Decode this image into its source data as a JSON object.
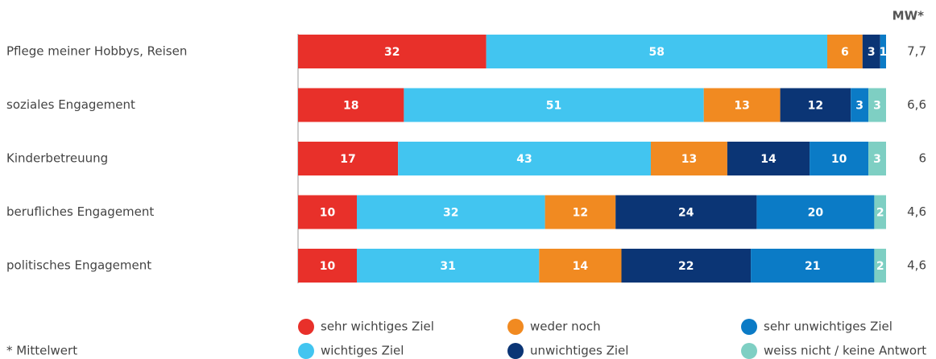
{
  "chart_data": {
    "type": "stacked-bar-horizontal",
    "categories": [
      "Pflege meiner Hobbys, Reisen",
      "soziales Engagement",
      "Kinderbetreuung",
      "berufliches Engagement",
      "politisches Engagement"
    ],
    "xlim": [
      0,
      100
    ],
    "series": [
      {
        "name": "sehr wichtiges Ziel",
        "color": "#e8302a",
        "values": [
          32,
          18,
          17,
          10,
          10
        ]
      },
      {
        "name": "wichtiges Ziel",
        "color": "#42c5f0",
        "values": [
          58,
          51,
          43,
          32,
          31
        ]
      },
      {
        "name": "weder noch",
        "color": "#f18a21",
        "values": [
          6,
          13,
          13,
          12,
          14
        ]
      },
      {
        "name": "unwichtiges Ziel",
        "color": "#0b3575",
        "values": [
          3,
          12,
          14,
          24,
          22
        ]
      },
      {
        "name": "sehr unwichtiges Ziel",
        "color": "#0b7bc6",
        "values": [
          1,
          3,
          10,
          20,
          21
        ]
      },
      {
        "name": "weiss nicht / keine Antwort",
        "color": "#7ecfc3",
        "values": [
          null,
          3,
          3,
          2,
          2
        ]
      }
    ],
    "mw": {
      "label": "MW*",
      "values": [
        7.7,
        6.6,
        6,
        4.6,
        4.6
      ],
      "value_labels": [
        "7,7",
        "6,6",
        "6",
        "4,6",
        "4,6"
      ]
    },
    "footnote": "* Mittelwert"
  }
}
